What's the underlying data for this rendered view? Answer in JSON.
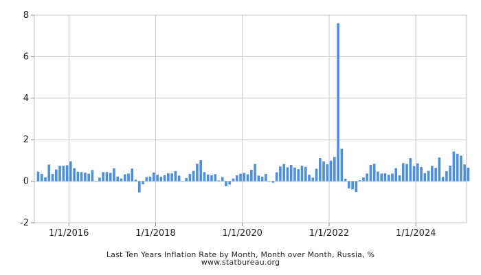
{
  "chart_data": {
    "type": "bar",
    "title": "Last Ten Years Inflation Rate by Month, Month over Month, Russia, %",
    "source": "www.statbureau.org",
    "xlabel": "",
    "ylabel": "",
    "ylim": [
      -2,
      8
    ],
    "y_ticks": [
      -2,
      0,
      2,
      4,
      6,
      8
    ],
    "x_tick_labels": [
      "1/1/2016",
      "1/1/2018",
      "1/1/2020",
      "1/1/2022",
      "1/1/2024"
    ],
    "grid": true,
    "bar_color": "#4a8fe0",
    "start": "2015-04",
    "end": "2025-03",
    "categories": [
      "2015-04",
      "2015-05",
      "2015-06",
      "2015-07",
      "2015-08",
      "2015-09",
      "2015-10",
      "2015-11",
      "2015-12",
      "2016-01",
      "2016-02",
      "2016-03",
      "2016-04",
      "2016-05",
      "2016-06",
      "2016-07",
      "2016-08",
      "2016-09",
      "2016-10",
      "2016-11",
      "2016-12",
      "2017-01",
      "2017-02",
      "2017-03",
      "2017-04",
      "2017-05",
      "2017-06",
      "2017-07",
      "2017-08",
      "2017-09",
      "2017-10",
      "2017-11",
      "2017-12",
      "2018-01",
      "2018-02",
      "2018-03",
      "2018-04",
      "2018-05",
      "2018-06",
      "2018-07",
      "2018-08",
      "2018-09",
      "2018-10",
      "2018-11",
      "2018-12",
      "2019-01",
      "2019-02",
      "2019-03",
      "2019-04",
      "2019-05",
      "2019-06",
      "2019-07",
      "2019-08",
      "2019-09",
      "2019-10",
      "2019-11",
      "2019-12",
      "2020-01",
      "2020-02",
      "2020-03",
      "2020-04",
      "2020-05",
      "2020-06",
      "2020-07",
      "2020-08",
      "2020-09",
      "2020-10",
      "2020-11",
      "2020-12",
      "2021-01",
      "2021-02",
      "2021-03",
      "2021-04",
      "2021-05",
      "2021-06",
      "2021-07",
      "2021-08",
      "2021-09",
      "2021-10",
      "2021-11",
      "2021-12",
      "2022-01",
      "2022-02",
      "2022-03",
      "2022-04",
      "2022-05",
      "2022-06",
      "2022-07",
      "2022-08",
      "2022-09",
      "2022-10",
      "2022-11",
      "2022-12",
      "2023-01",
      "2023-02",
      "2023-03",
      "2023-04",
      "2023-05",
      "2023-06",
      "2023-07",
      "2023-08",
      "2023-09",
      "2023-10",
      "2023-11",
      "2023-12",
      "2024-01",
      "2024-02",
      "2024-03",
      "2024-04",
      "2024-05",
      "2024-06",
      "2024-07",
      "2024-08",
      "2024-09",
      "2024-10",
      "2024-11",
      "2024-12",
      "2025-01",
      "2025-02",
      "2025-03"
    ],
    "values": [
      0.46,
      0.35,
      0.19,
      0.8,
      0.35,
      0.57,
      0.74,
      0.75,
      0.77,
      0.96,
      0.63,
      0.46,
      0.44,
      0.41,
      0.36,
      0.54,
      0.01,
      0.17,
      0.44,
      0.44,
      0.4,
      0.62,
      0.22,
      0.13,
      0.33,
      0.37,
      0.61,
      0.07,
      -0.54,
      -0.15,
      0.2,
      0.22,
      0.42,
      0.31,
      0.21,
      0.29,
      0.38,
      0.38,
      0.49,
      0.27,
      0.01,
      0.16,
      0.35,
      0.5,
      0.84,
      1.01,
      0.44,
      0.32,
      0.29,
      0.34,
      0.04,
      0.2,
      -0.24,
      -0.16,
      0.13,
      0.28,
      0.36,
      0.4,
      0.33,
      0.55,
      0.83,
      0.27,
      0.22,
      0.35,
      0.0,
      -0.07,
      0.43,
      0.71,
      0.83,
      0.67,
      0.78,
      0.66,
      0.58,
      0.74,
      0.69,
      0.31,
      0.17,
      0.6,
      1.11,
      0.96,
      0.82,
      0.99,
      1.17,
      7.61,
      1.56,
      0.12,
      -0.35,
      -0.39,
      -0.52,
      0.05,
      0.18,
      0.37,
      0.78,
      0.84,
      0.46,
      0.37,
      0.38,
      0.31,
      0.37,
      0.63,
      0.28,
      0.87,
      0.83,
      1.11,
      0.73,
      0.86,
      0.68,
      0.39,
      0.5,
      0.74,
      0.64,
      1.14,
      0.2,
      0.48,
      0.75,
      1.43,
      1.32,
      1.23,
      0.81,
      0.65
    ]
  }
}
